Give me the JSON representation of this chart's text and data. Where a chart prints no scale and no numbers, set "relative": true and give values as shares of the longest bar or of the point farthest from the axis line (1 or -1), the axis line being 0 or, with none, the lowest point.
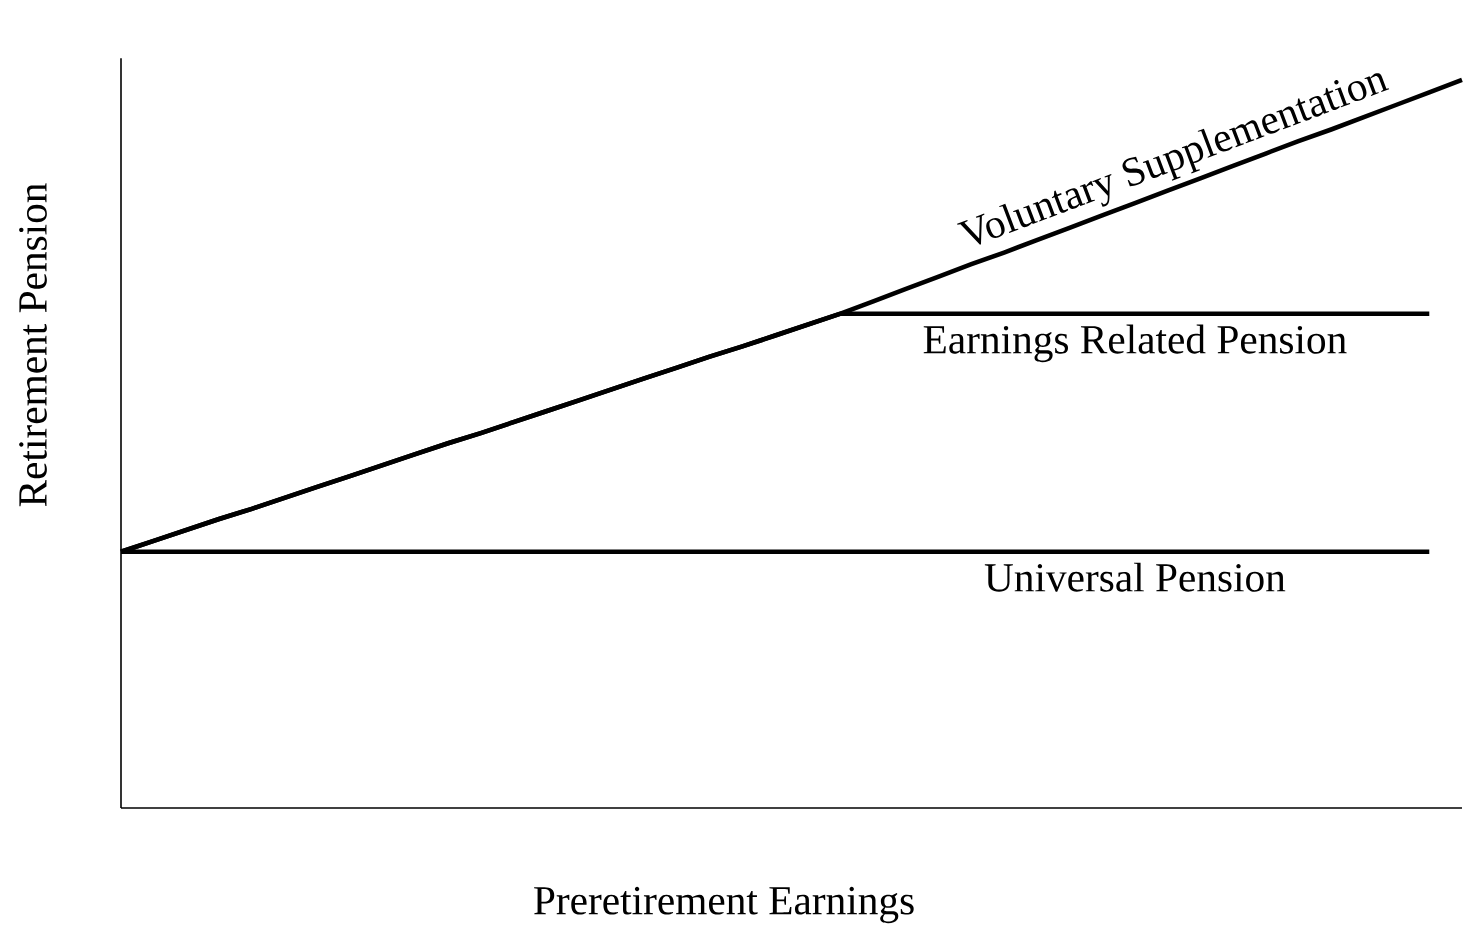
{
  "chart_data": {
    "type": "line",
    "relative": true,
    "xlabel": "Preretirement Earnings",
    "ylabel": "Retirement Pension",
    "marker": "none",
    "line_style": "solid",
    "categories": [
      null,
      null,
      null,
      null,
      null,
      null,
      null,
      null,
      null,
      null,
      null,
      null,
      null,
      null,
      null,
      null,
      null,
      null,
      null,
      null,
      null,
      null,
      null,
      null,
      null,
      null,
      null,
      null,
      null,
      null,
      null,
      null,
      null,
      null,
      null,
      null,
      null,
      null,
      null,
      null,
      null,
      null
    ],
    "series": [
      {
        "name": "Universal Pension",
        "color": "#000000",
        "values": [
          0.352,
          0.352,
          0.352,
          0.352,
          0.352,
          0.352,
          0.352,
          0.352,
          0.352,
          0.352,
          0.352,
          0.352,
          0.352,
          0.352,
          0.352,
          0.352,
          0.352,
          0.352,
          0.352,
          0.352,
          0.352,
          0.352,
          0.352,
          0.352,
          0.352,
          0.352,
          0.352,
          0.352,
          0.352,
          0.352,
          0.352,
          0.352,
          0.352,
          0.352,
          0.352,
          0.352,
          0.352,
          0.352,
          0.352,
          0.352,
          0.352,
          null
        ]
      },
      {
        "name": "Earnings Related Pension",
        "color": "#000000",
        "values": [
          0.352,
          0.367,
          0.382,
          0.397,
          0.411,
          0.426,
          0.441,
          0.456,
          0.471,
          0.486,
          0.501,
          0.515,
          0.53,
          0.545,
          0.56,
          0.575,
          0.59,
          0.605,
          0.62,
          0.634,
          0.649,
          0.664,
          0.679,
          0.679,
          0.679,
          0.679,
          0.679,
          0.679,
          0.679,
          0.679,
          0.679,
          0.679,
          0.679,
          0.679,
          0.679,
          0.679,
          0.679,
          0.679,
          0.679,
          0.679,
          0.679,
          null
        ]
      },
      {
        "name": "Voluntary Supplementation",
        "color": "#000000",
        "values": [
          0.352,
          0.367,
          0.382,
          0.397,
          0.411,
          0.426,
          0.441,
          0.456,
          0.471,
          0.486,
          0.501,
          0.515,
          0.53,
          0.545,
          0.56,
          0.575,
          0.59,
          0.605,
          0.62,
          0.634,
          0.649,
          0.664,
          0.679,
          0.696,
          0.713,
          0.73,
          0.747,
          0.763,
          0.78,
          0.797,
          0.814,
          0.831,
          0.848,
          0.865,
          0.882,
          0.899,
          0.916,
          0.932,
          0.949,
          0.966,
          0.983,
          1.0
        ]
      }
    ]
  }
}
